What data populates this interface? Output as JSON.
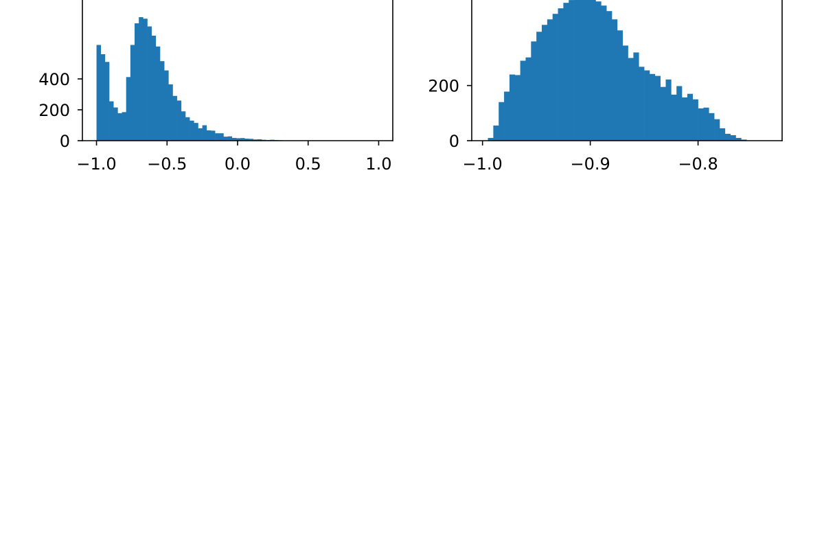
{
  "figure": {
    "background": "#ffffff"
  },
  "chart_data": [
    {
      "type": "bar",
      "subtype": "histogram",
      "color": "#1f77b4",
      "xlim": [
        -1.1,
        1.1
      ],
      "ylim": [
        0,
        1000
      ],
      "x_ticks": [
        {
          "value": -1.0,
          "label": "−1.0"
        },
        {
          "value": -0.5,
          "label": "−0.5"
        },
        {
          "value": 0.0,
          "label": "0.0"
        },
        {
          "value": 0.5,
          "label": "0.5"
        },
        {
          "value": 1.0,
          "label": "1.0"
        }
      ],
      "y_ticks": [
        {
          "value": 0,
          "label": "0"
        },
        {
          "value": 200,
          "label": "200"
        },
        {
          "value": 400,
          "label": "400"
        }
      ],
      "bin_start": -1.0,
      "bin_width": 0.03,
      "values": [
        620,
        560,
        510,
        255,
        215,
        178,
        185,
        412,
        620,
        760,
        800,
        790,
        740,
        680,
        610,
        515,
        455,
        365,
        290,
        260,
        190,
        152,
        130,
        115,
        80,
        100,
        67,
        65,
        48,
        48,
        26,
        28,
        18,
        16,
        17,
        13,
        12,
        8,
        9,
        6,
        4,
        6,
        4,
        3,
        2,
        2,
        2,
        1,
        1,
        1,
        1,
        1,
        0,
        0,
        0,
        0,
        0,
        0,
        0,
        0,
        0,
        0,
        0,
        0,
        0,
        0,
        1
      ],
      "grid": false
    },
    {
      "type": "bar",
      "subtype": "histogram",
      "color": "#1f77b4",
      "xlim": [
        -1.01,
        -0.722
      ],
      "ylim": [
        0,
        560
      ],
      "x_ticks": [
        {
          "value": -1.0,
          "label": "−1.0"
        },
        {
          "value": -0.9,
          "label": "−0.9"
        },
        {
          "value": -0.8,
          "label": "−0.8"
        }
      ],
      "y_ticks": [
        {
          "value": 0,
          "label": "0"
        },
        {
          "value": 200,
          "label": "200"
        }
      ],
      "bin_start": -0.995,
      "bin_width": 0.005,
      "values": [
        10,
        55,
        140,
        178,
        240,
        238,
        290,
        302,
        360,
        395,
        420,
        440,
        460,
        480,
        500,
        510,
        520,
        525,
        520,
        515,
        505,
        490,
        470,
        440,
        400,
        345,
        300,
        320,
        268,
        255,
        242,
        235,
        195,
        222,
        167,
        198,
        157,
        170,
        150,
        117,
        120,
        100,
        78,
        45,
        25,
        20,
        10,
        4
      ],
      "grid": false
    }
  ]
}
